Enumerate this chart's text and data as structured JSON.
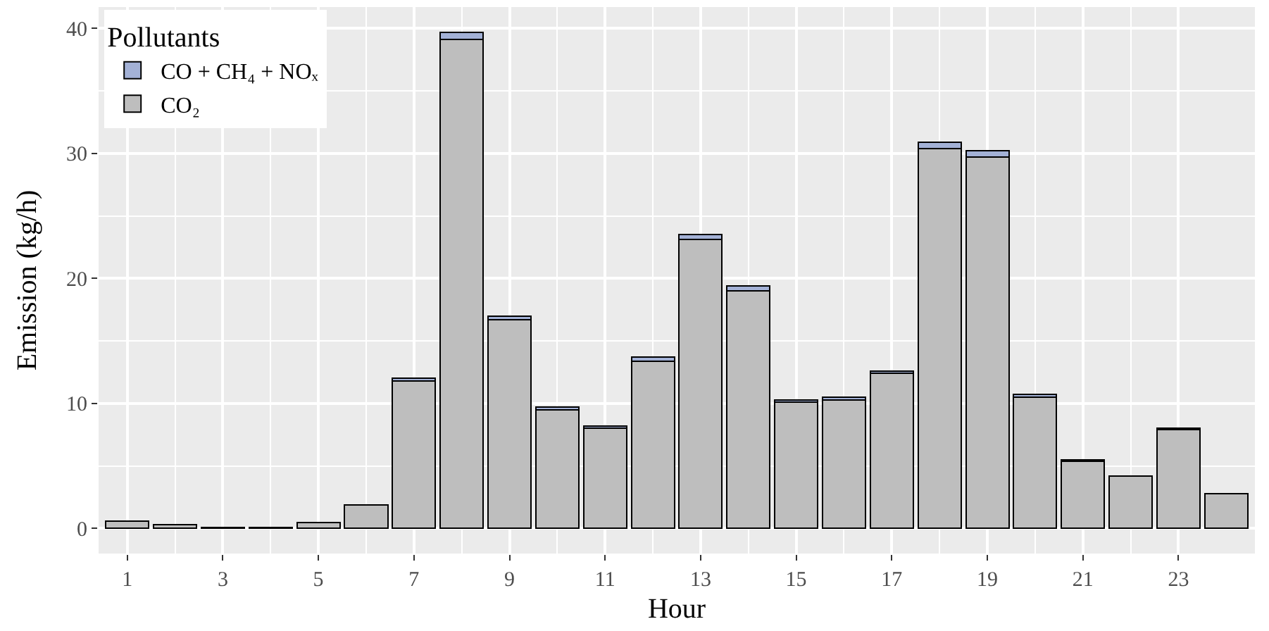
{
  "chart_data": {
    "type": "bar",
    "stacked": true,
    "xlabel": "Hour",
    "ylabel": "Emission (kg/h)",
    "legend_title": "Pollutants",
    "legend": "top left",
    "grid": true,
    "x": [
      1,
      2,
      3,
      4,
      5,
      6,
      7,
      8,
      9,
      10,
      11,
      12,
      13,
      14,
      15,
      16,
      17,
      18,
      19,
      20,
      21,
      22,
      23,
      24
    ],
    "xlim": [
      0.4,
      24.6
    ],
    "xticks": [
      1,
      3,
      5,
      7,
      9,
      11,
      13,
      15,
      17,
      19,
      21,
      23
    ],
    "ylim": [
      -2,
      41.7
    ],
    "yticks": [
      0,
      10,
      20,
      30,
      40
    ],
    "series": [
      {
        "name": "CO₂",
        "color": "#bebebe",
        "values": [
          0.6,
          0.3,
          0.1,
          0.1,
          0.5,
          1.9,
          11.8,
          39.1,
          16.7,
          9.5,
          8.0,
          13.4,
          23.1,
          19.0,
          10.1,
          10.3,
          12.4,
          30.4,
          29.7,
          10.5,
          5.4,
          4.2,
          7.9,
          2.8
        ]
      },
      {
        "name": "CO + CH₄ + NOₓ",
        "color": "#a3b1d6",
        "values": [
          null,
          null,
          null,
          null,
          null,
          null,
          0.2,
          0.6,
          0.3,
          0.2,
          0.2,
          0.3,
          0.4,
          0.4,
          0.2,
          0.2,
          0.2,
          0.5,
          0.5,
          0.2,
          0.1,
          null,
          0.1,
          null
        ]
      }
    ]
  }
}
